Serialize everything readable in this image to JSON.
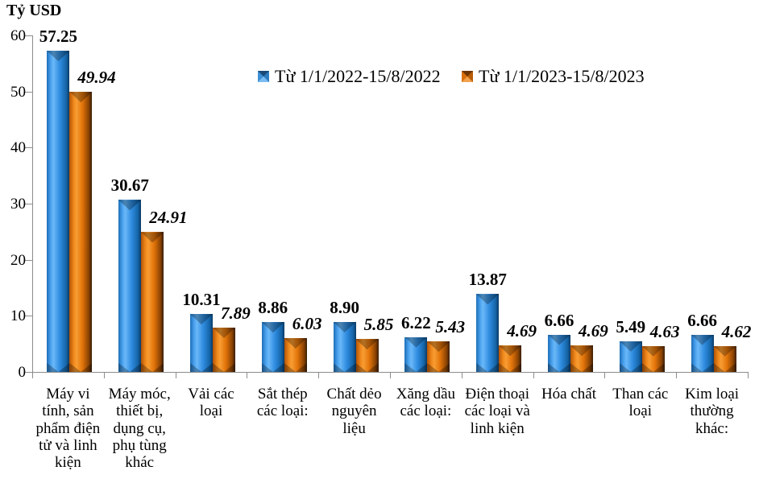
{
  "title": {
    "text": "Tỷ USD"
  },
  "axis": {
    "color": "#8C8C8C",
    "yticks": [
      0,
      10,
      20,
      30,
      40,
      50,
      60
    ]
  },
  "colors": {
    "series_2022": "#2E8DDC",
    "series_2023": "#E8750A"
  },
  "chart_data": {
    "type": "bar",
    "title": "Tỷ USD",
    "ylabel": "Tỷ USD",
    "xlabel": "",
    "ylim": [
      0,
      60
    ],
    "ytick_step": 10,
    "grid": false,
    "legend_position": "top",
    "categories": [
      "Máy vi tính, sản phẩm điện tử và linh kiện",
      "Máy móc, thiết bị, dụng cụ, phụ tùng khác",
      "Vải các loại",
      "Sắt thép các loại:",
      "Chất dẻo nguyên liệu",
      "Xăng dầu các loại:",
      "Điện thoại các loại và linh kiện",
      "Hóa chất",
      "Than các loại",
      "Kim loại thường khác:"
    ],
    "series": [
      {
        "name": "Từ 1/1/2022-15/8/2022",
        "color": "#2E8DDC",
        "values": [
          57.25,
          30.67,
          10.31,
          8.86,
          8.9,
          6.22,
          13.87,
          6.66,
          5.49,
          6.66
        ],
        "labels": [
          "57.25",
          "30.67",
          "10.31",
          "8.86",
          "8.90",
          "6.22",
          "13.87",
          "6.66",
          "5.49",
          "6.66"
        ]
      },
      {
        "name": "Từ 1/1/2023-15/8/2023",
        "color": "#E8750A",
        "values": [
          49.94,
          24.91,
          7.89,
          6.03,
          5.85,
          5.43,
          4.69,
          4.69,
          4.63,
          4.62
        ],
        "labels": [
          "49.94",
          "24.91",
          "7.89",
          "6.03",
          "5.85",
          "5.43",
          "4.69",
          "4.69",
          "4.63",
          "4.62"
        ]
      }
    ]
  }
}
